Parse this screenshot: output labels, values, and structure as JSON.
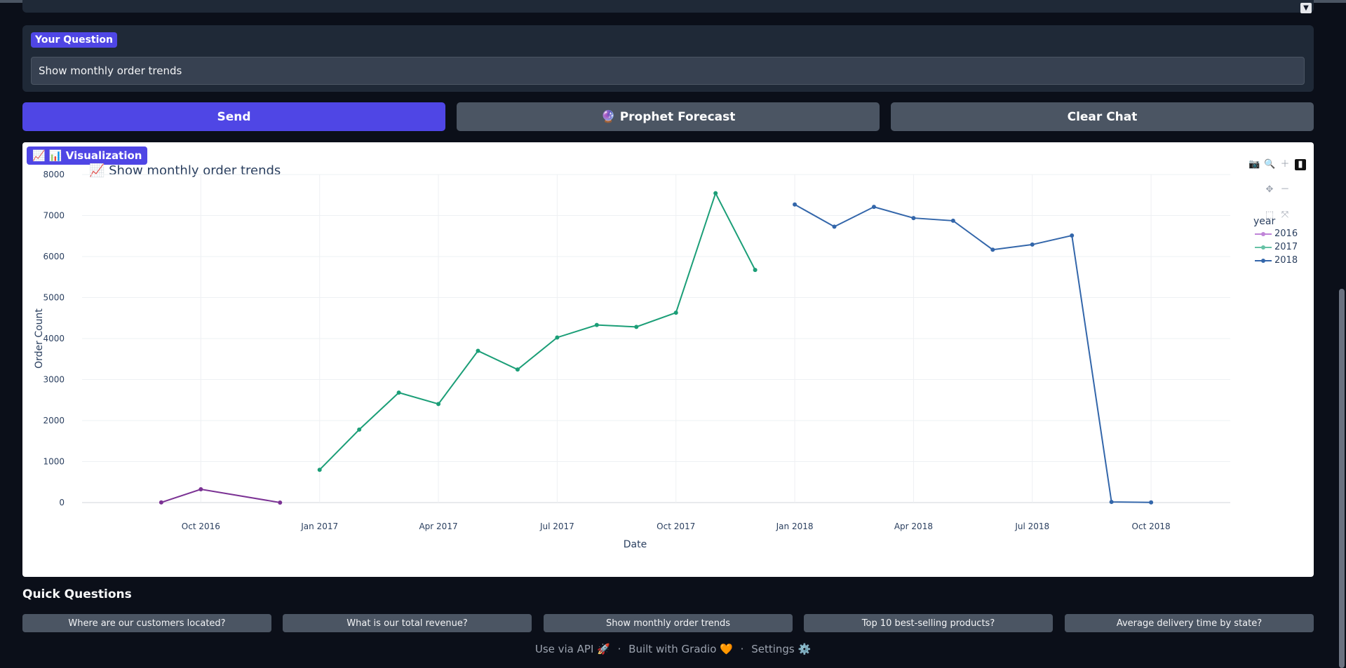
{
  "question": {
    "label": "Your Question",
    "value": "Show monthly order trends"
  },
  "buttons": {
    "send": "Send",
    "prophet": "🔮 Prophet Forecast",
    "clear": "Clear Chat"
  },
  "visualization": {
    "label": "📊 Visualization",
    "title": "📈 Show monthly order trends"
  },
  "chart_data": {
    "type": "line",
    "title": "📈 Show monthly order trends",
    "xlabel": "Date",
    "ylabel": "Order Count",
    "ylim": [
      0,
      8000
    ],
    "yticks": [
      "0",
      "1000",
      "2000",
      "3000",
      "4000",
      "5000",
      "6000",
      "7000",
      "8000"
    ],
    "xticks": [
      "Oct 2016",
      "Jan 2017",
      "Apr 2017",
      "Jul 2017",
      "Oct 2017",
      "Jan 2018",
      "Apr 2018",
      "Jul 2018",
      "Oct 2018"
    ],
    "legend_title": "year",
    "legend_position": "top-right",
    "grid": true,
    "series": [
      {
        "name": "2016",
        "color": "#7b3294",
        "x": [
          "2016-09",
          "2016-10",
          "2016-12"
        ],
        "values": [
          4,
          324,
          1
        ]
      },
      {
        "name": "2017",
        "color": "#1b9e77",
        "x": [
          "2017-01",
          "2017-02",
          "2017-03",
          "2017-04",
          "2017-05",
          "2017-06",
          "2017-07",
          "2017-08",
          "2017-09",
          "2017-10",
          "2017-11",
          "2017-12"
        ],
        "values": [
          800,
          1780,
          2682,
          2404,
          3700,
          3245,
          4026,
          4331,
          4285,
          4631,
          7544,
          5673
        ]
      },
      {
        "name": "2018",
        "color": "#3366aa",
        "x": [
          "2018-01",
          "2018-02",
          "2018-03",
          "2018-04",
          "2018-05",
          "2018-06",
          "2018-07",
          "2018-08",
          "2018-09",
          "2018-10"
        ],
        "values": [
          7269,
          6728,
          7211,
          6939,
          6873,
          6167,
          6292,
          6512,
          16,
          4
        ]
      }
    ]
  },
  "quick_questions": {
    "title": "Quick Questions",
    "items": [
      "Where are our customers located?",
      "What is our total revenue?",
      "Show monthly order trends",
      "Top 10 best-selling products?",
      "Average delivery time by state?"
    ]
  },
  "footer": {
    "api": "Use via API 🚀",
    "sep1": "·",
    "built": "Built with Gradio 🧡",
    "sep2": "·",
    "settings": "Settings ⚙️"
  },
  "icons": {
    "camera": "camera-icon",
    "zoom": "zoom-icon",
    "pan": "pan-icon",
    "plus": "zoom-in-icon",
    "minus": "zoom-out-icon",
    "autoscale": "autoscale-icon",
    "plotly": "plotly-logo-icon"
  }
}
